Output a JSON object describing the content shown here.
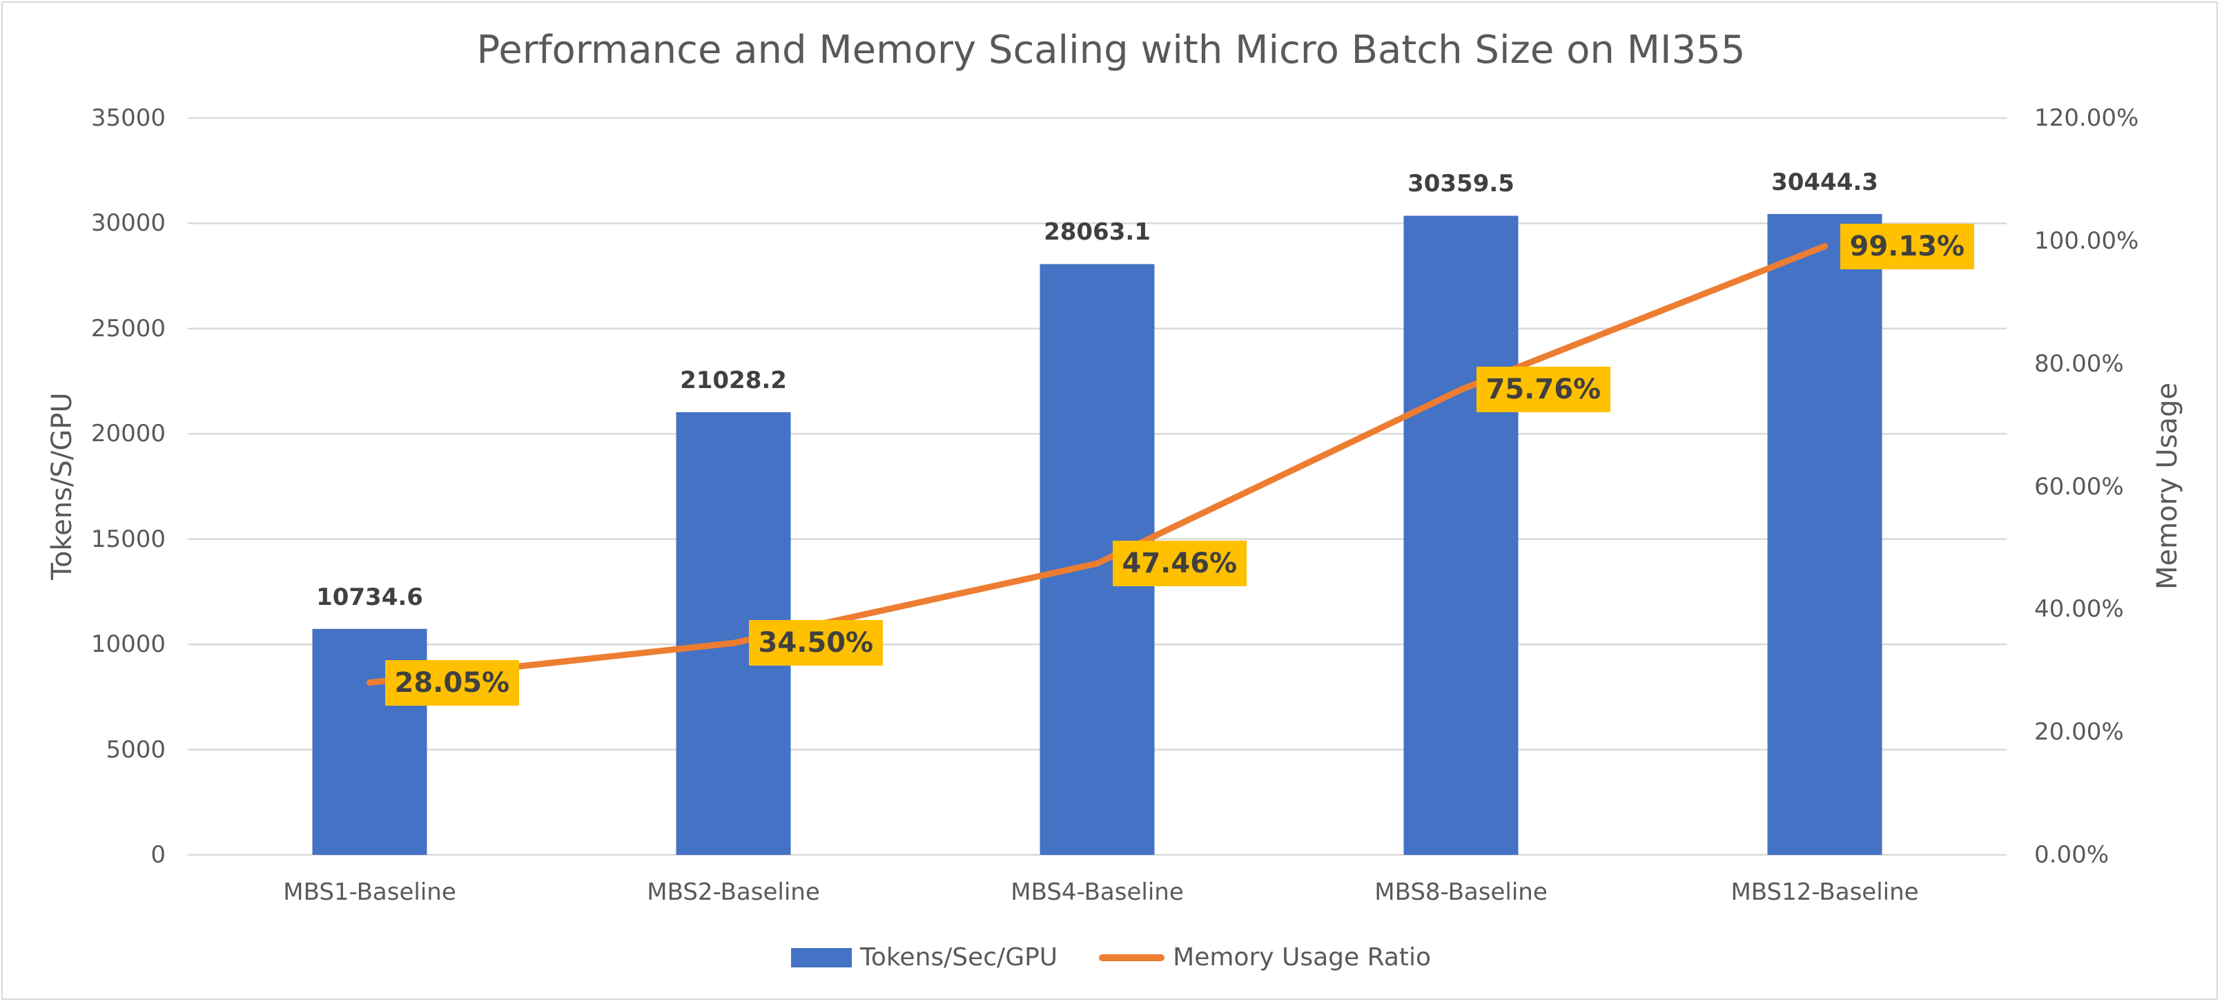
{
  "chart_data": {
    "type": "bar+line",
    "title": "Performance and Memory Scaling with Micro Batch Size on MI355",
    "categories": [
      "MBS1-Baseline",
      "MBS2-Baseline",
      "MBS4-Baseline",
      "MBS8-Baseline",
      "MBS12-Baseline"
    ],
    "series": [
      {
        "name": "Tokens/Sec/GPU",
        "type": "bar",
        "axis": "left",
        "color": "#4472c4",
        "values": [
          10734.6,
          21028.2,
          28063.1,
          30359.5,
          30444.3
        ],
        "labels": [
          "10734.6",
          "21028.2",
          "28063.1",
          "30359.5",
          "30444.3"
        ]
      },
      {
        "name": "Memory Usage Ratio",
        "type": "line",
        "axis": "right",
        "color": "#ed7d31",
        "label_bg": "#ffc000",
        "values": [
          0.2805,
          0.345,
          0.4746,
          0.7576,
          0.9913
        ],
        "labels": [
          "28.05%",
          "34.50%",
          "47.46%",
          "75.76%",
          "99.13%"
        ]
      }
    ],
    "ylabel": "Tokens/S/GPU",
    "y2label": "Memory Usage",
    "xlabel": "",
    "ylim": [
      0,
      35000
    ],
    "y2lim": [
      0,
      1.2
    ],
    "yticks": [
      "35000",
      "30000",
      "25000",
      "20000",
      "15000",
      "10000",
      "5000",
      "0"
    ],
    "y2ticks": [
      "120.00%",
      "100.00%",
      "80.00%",
      "60.00%",
      "40.00%",
      "20.00%",
      "0.00%"
    ],
    "grid": true,
    "legend_position": "bottom"
  },
  "legend": {
    "bar_label": "Tokens/Sec/GPU",
    "line_label": "Memory Usage Ratio"
  }
}
